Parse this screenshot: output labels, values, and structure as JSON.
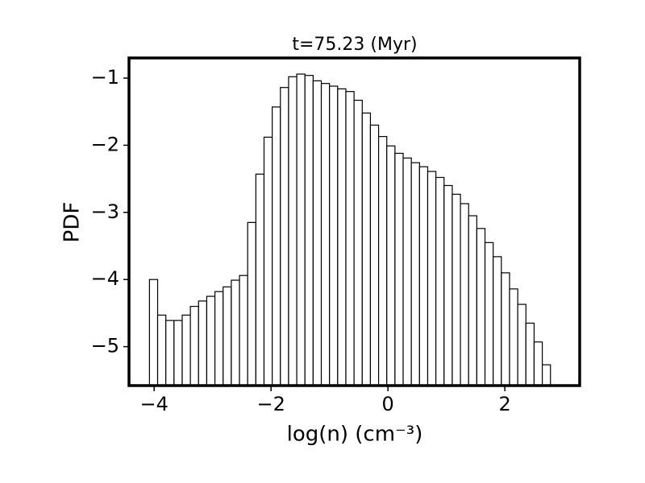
{
  "chart_data": {
    "type": "histogram",
    "title": "t=75.23 (Myr)",
    "xlabel": "log(n) (cm⁻³)",
    "ylabel": "PDF",
    "bins": [
      -4.08,
      -3.94,
      -3.8,
      -3.66,
      -3.52,
      -3.38,
      -3.24,
      -3.1,
      -2.96,
      -2.82,
      -2.68,
      -2.54,
      -2.4,
      -2.26,
      -2.12,
      -1.98,
      -1.84,
      -1.7,
      -1.56,
      -1.42,
      -1.28,
      -1.14,
      -1.0,
      -0.86,
      -0.72,
      -0.58,
      -0.44,
      -0.3,
      -0.16,
      -0.02,
      0.12,
      0.26,
      0.4,
      0.54,
      0.68,
      0.82,
      0.96,
      1.1,
      1.24,
      1.38,
      1.52,
      1.66,
      1.8,
      1.94,
      2.08,
      2.22,
      2.36,
      2.5,
      2.64,
      2.78
    ],
    "values": [
      -4.0,
      -4.53,
      -4.61,
      -4.61,
      -4.53,
      -4.4,
      -4.32,
      -4.25,
      -4.18,
      -4.11,
      -4.01,
      -3.94,
      -3.15,
      -2.43,
      -1.88,
      -1.43,
      -1.14,
      -0.98,
      -0.94,
      -0.96,
      -1.04,
      -1.08,
      -1.12,
      -1.16,
      -1.2,
      -1.33,
      -1.52,
      -1.7,
      -1.87,
      -2.01,
      -2.12,
      -2.19,
      -2.26,
      -2.32,
      -2.39,
      -2.48,
      -2.6,
      -2.73,
      -2.87,
      -3.05,
      -3.24,
      -3.45,
      -3.66,
      -3.9,
      -4.14,
      -4.37,
      -4.65,
      -4.93,
      -5.27
    ],
    "color": "#ffffff",
    "edgecolor": "#000000",
    "xlim": [
      -4.43,
      3.28
    ],
    "xticks": [
      {
        "value": -4,
        "label": "−4"
      },
      {
        "value": -2,
        "label": "−2"
      },
      0,
      2
    ],
    "ylim": [
      -5.58,
      -0.7
    ],
    "yticks": [
      {
        "value": -5,
        "label": "−5"
      },
      {
        "value": -4,
        "label": "−4"
      },
      {
        "value": -3,
        "label": "−3"
      },
      {
        "value": -2,
        "label": "−2"
      },
      {
        "value": -1,
        "label": "−1"
      }
    ]
  }
}
